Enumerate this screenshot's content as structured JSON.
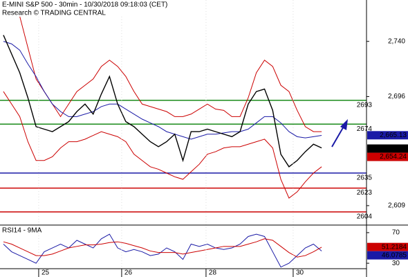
{
  "chart_data": {
    "type": "price",
    "title": "E-MINI S&P 500 - 30min - 10/30/2018 09:18:03 (CET)",
    "subtitle": "Research © TRADING CENTRAL",
    "xlim": [
      -0.42,
      44.5
    ],
    "xticks": [
      {
        "value": 4.66,
        "label": "25"
      },
      {
        "value": 14.83,
        "label": "26"
      },
      {
        "value": 25.17,
        "label": "28"
      },
      {
        "value": 35.85,
        "label": "30"
      }
    ],
    "ylim": [
      2593.5,
      2773
    ],
    "yticks": [
      {
        "value": 2740,
        "label": "2,740"
      },
      {
        "value": 2696,
        "label": "2,696"
      },
      {
        "value": 2609,
        "label": "2,609"
      }
    ],
    "series": [
      {
        "name": "Upper band",
        "color": "#cc0000",
        "width": 1,
        "values": [
          2770,
          2772,
          2760,
          2735,
          2710,
          2700,
          2690,
          2680,
          2690,
          2700,
          2705,
          2710,
          2720,
          2725,
          2720,
          2712,
          2700,
          2690,
          2688,
          2686,
          2684,
          2680,
          2680,
          2682,
          2686,
          2690,
          2686,
          2685,
          2680,
          2680,
          2695,
          2715,
          2725,
          2720,
          2705,
          2700,
          2685,
          2672,
          2668,
          2668
        ]
      },
      {
        "name": "Lower band",
        "color": "#cc0000",
        "width": 1,
        "values": [
          2700,
          2690,
          2680,
          2660,
          2645,
          2645,
          2648,
          2655,
          2660,
          2660,
          2662,
          2665,
          2668,
          2666,
          2664,
          2660,
          2650,
          2645,
          2640,
          2638,
          2635,
          2632,
          2630,
          2636,
          2642,
          2650,
          2652,
          2655,
          2656,
          2656,
          2658,
          2660,
          2662,
          2655,
          2630,
          2615,
          2620,
          2628,
          2635,
          2640
        ]
      },
      {
        "name": "Moving average",
        "color": "#1a1aa6",
        "width": 1,
        "values": [
          2740,
          2738,
          2733,
          2722,
          2712,
          2700,
          2690,
          2684,
          2680,
          2680,
          2682,
          2684,
          2688,
          2690,
          2690,
          2686,
          2682,
          2678,
          2675,
          2672,
          2668,
          2666,
          2664,
          2662,
          2664,
          2666,
          2666,
          2667,
          2668,
          2668,
          2670,
          2675,
          2680,
          2680,
          2675,
          2668,
          2664,
          2663,
          2664,
          2665
        ]
      },
      {
        "name": "Price",
        "color": "#000000",
        "width": 1.4,
        "values": [
          2745,
          2730,
          2715,
          2695,
          2672,
          2670,
          2668,
          2672,
          2676,
          2684,
          2690,
          2682,
          2698,
          2712,
          2690,
          2676,
          2672,
          2666,
          2660,
          2656,
          2660,
          2666,
          2645,
          2668,
          2668,
          2670,
          2668,
          2666,
          2664,
          2668,
          2690,
          2700,
          2702,
          2685,
          2650,
          2640,
          2645,
          2652,
          2658,
          2655
        ]
      }
    ],
    "levels": [
      {
        "value": 2693,
        "color": "#1a8a1a"
      },
      {
        "value": 2674,
        "color": "#1a8a1a"
      },
      {
        "value": 2635,
        "color": "#1a1aa6"
      },
      {
        "value": 2623,
        "color": "#cc0000"
      },
      {
        "value": 2604,
        "color": "#cc0000"
      }
    ],
    "price_labels": [
      {
        "value": 2665.13,
        "label": "2,665.13",
        "color": "#1a1aa6"
      },
      {
        "value": 2654.5,
        "label": "2,654.5",
        "color": "#000000"
      },
      {
        "value": 2654.24,
        "label": "2,654.24",
        "color": "#cc0000"
      }
    ],
    "rsi": {
      "title": "RSI14 - 9MA",
      "ylim": [
        12,
        79
      ],
      "yticks": [
        70,
        30
      ],
      "series": [
        {
          "name": "RSI",
          "color": "#1a1aa6",
          "values": [
            55,
            45,
            40,
            35,
            30,
            45,
            50,
            55,
            50,
            60,
            55,
            50,
            62,
            68,
            50,
            45,
            48,
            45,
            40,
            42,
            50,
            45,
            35,
            55,
            52,
            55,
            50,
            48,
            50,
            55,
            65,
            68,
            65,
            45,
            25,
            30,
            40,
            50,
            55,
            46
          ]
        },
        {
          "name": "MA",
          "color": "#cc0000",
          "values": [
            58,
            55,
            50,
            45,
            40,
            40,
            42,
            46,
            50,
            52,
            54,
            54,
            55,
            57,
            58,
            56,
            53,
            50,
            46,
            44,
            44,
            44,
            42,
            44,
            46,
            48,
            50,
            52,
            52,
            52,
            55,
            58,
            62,
            60,
            52,
            44,
            38,
            40,
            45,
            51
          ]
        }
      ],
      "labels": [
        {
          "value": 51.2184,
          "label": "51.2184",
          "color": "#cc0000"
        },
        {
          "value": 46.0785,
          "label": "46.0785",
          "color": "#1a1aa6"
        }
      ]
    }
  }
}
